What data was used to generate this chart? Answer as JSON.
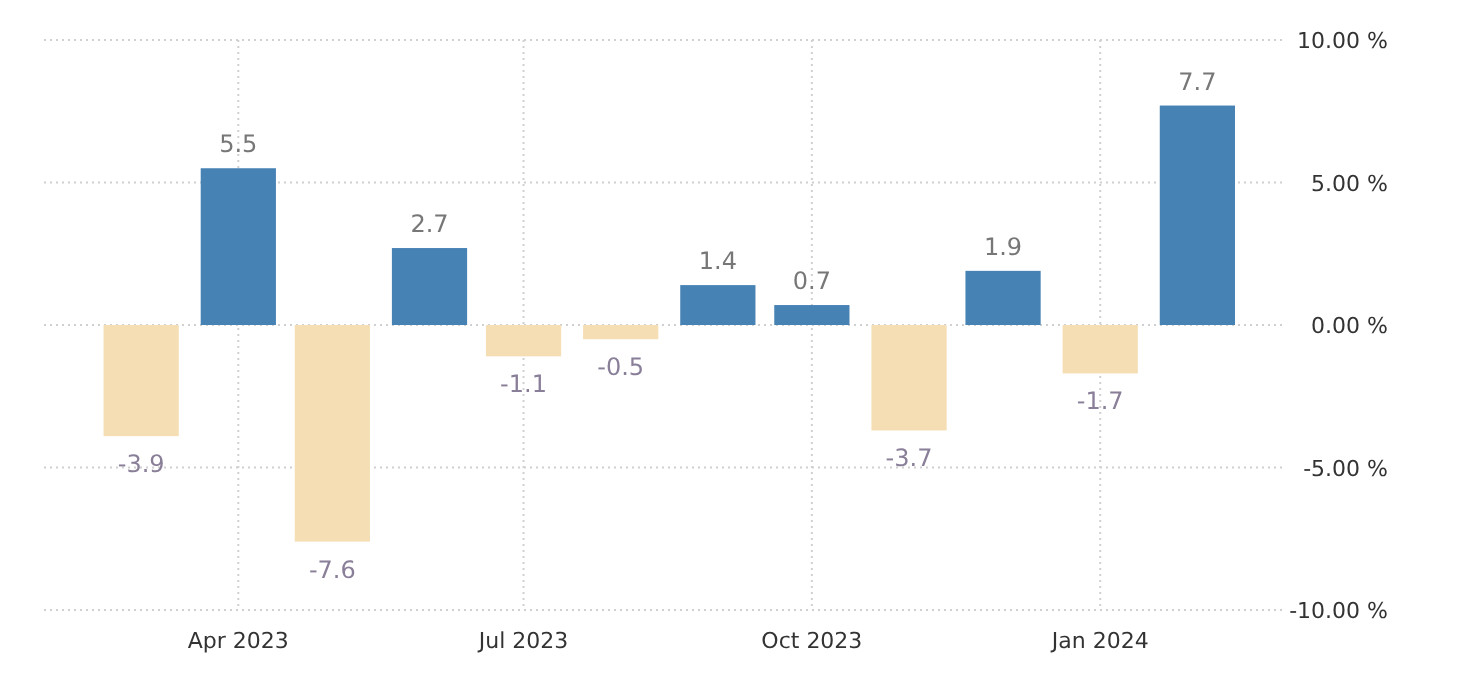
{
  "chart_data": {
    "type": "bar",
    "x": [
      "2023-03",
      "2023-04",
      "2023-05",
      "2023-06",
      "2023-07",
      "2023-08",
      "2023-09",
      "2023-10",
      "2023-11",
      "2023-12",
      "2024-01",
      "2024-02"
    ],
    "values": [
      -3.9,
      5.5,
      -7.6,
      2.7,
      -1.1,
      -0.5,
      1.4,
      0.7,
      -3.7,
      1.9,
      -1.7,
      7.7
    ],
    "colors": [
      "#f5deb3",
      "#4682b4",
      "#f5deb3",
      "#4682b4",
      "#f5deb3",
      "#f5deb3",
      "#4682b4",
      "#4682b4",
      "#f5deb3",
      "#4682b4",
      "#f5deb3",
      "#4682b4"
    ],
    "data_labels": true,
    "xlim": [
      "2023-01-29",
      "2024-02-28"
    ],
    "xticks": [
      {
        "value": "2023-04",
        "label": "Apr 2023"
      },
      {
        "value": "2023-07",
        "label": "Jul 2023"
      },
      {
        "value": "2023-10",
        "label": "Oct 2023"
      },
      {
        "value": "2024-01",
        "label": "Jan 2024"
      }
    ],
    "ylim": [
      -10,
      10
    ],
    "yticks": [
      {
        "value": 10,
        "label": "10.00 %"
      },
      {
        "value": 5,
        "label": "5.00 %"
      },
      {
        "value": 0,
        "label": "0.00 %"
      },
      {
        "value": -5,
        "label": "-5.00 %"
      },
      {
        "value": -10,
        "label": "-10.00 %"
      }
    ],
    "grid": true
  }
}
